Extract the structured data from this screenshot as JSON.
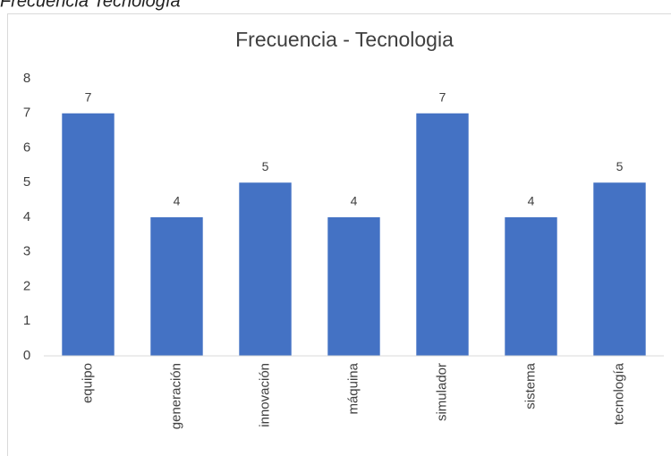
{
  "caption": "Frecuencia Tecnología",
  "chart_data": {
    "type": "bar",
    "title": "Frecuencia - Tecnologia",
    "categories": [
      "equipo",
      "generación",
      "innovación",
      "máquina",
      "simulador",
      "sistema",
      "tecnología"
    ],
    "values": [
      7,
      4,
      5,
      4,
      7,
      4,
      5
    ],
    "color": "#4472c4",
    "ylim": [
      0,
      8
    ],
    "yticks": [
      0,
      1,
      2,
      3,
      4,
      5,
      6,
      7,
      8
    ],
    "grid": false
  }
}
